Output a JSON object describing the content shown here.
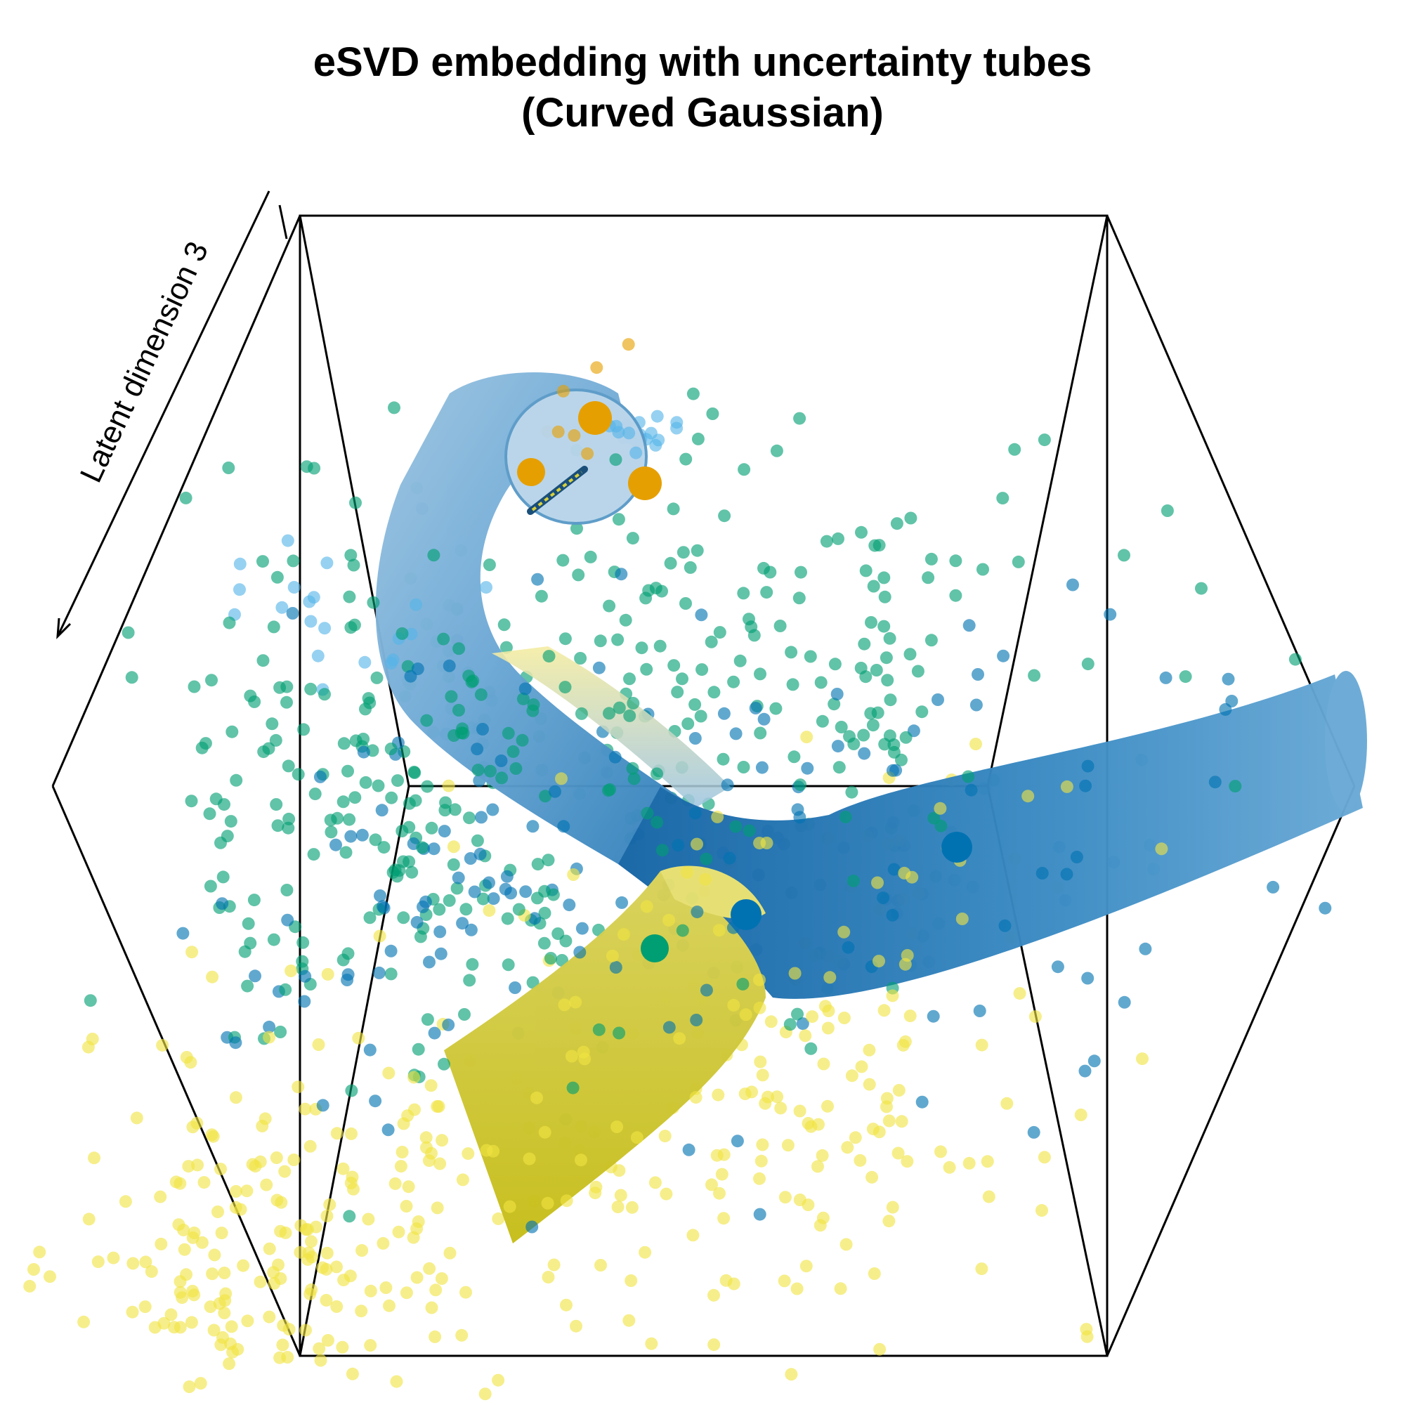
{
  "chart_data": {
    "type": "scatter",
    "projection": "3d",
    "title": "eSVD embedding with uncertainty tubes",
    "subtitle": "(Curved Gaussian)",
    "zlabel": "Latent dimension 3",
    "xlabel": "",
    "ylabel": "",
    "grid": false,
    "legend": "none",
    "point_colors": {
      "sky_blue": "#56B4E9",
      "orange": "#E69F00",
      "green": "#009E73",
      "dark_blue": "#0072B2",
      "yellow": "#F0E442"
    },
    "tube_colors": {
      "light_blue": "#9ec5e1",
      "mid_blue": "#5aa0cf",
      "dark_blue": "#1565a6",
      "pale_yellow": "#f4eca0",
      "olive_yellow": "#c6bd18"
    },
    "clusters": [
      {
        "color": "#56B4E9",
        "n": 40
      },
      {
        "color": "#E69F00",
        "n": 8
      },
      {
        "color": "#009E73",
        "n": 420
      },
      {
        "color": "#0072B2",
        "n": 200
      },
      {
        "color": "#F0E442",
        "n": 420
      }
    ],
    "trajectory_centers": [
      {
        "color": "#E69F00"
      },
      {
        "color": "#E69F00"
      },
      {
        "color": "#E69F00"
      },
      {
        "color": "#0072B2"
      },
      {
        "color": "#0072B2"
      },
      {
        "color": "#009E73"
      }
    ],
    "tubes": [
      {
        "from": "#E69F00",
        "to": "#0072B2"
      },
      {
        "from": "#0072B2",
        "to": "#F0E442"
      }
    ]
  }
}
